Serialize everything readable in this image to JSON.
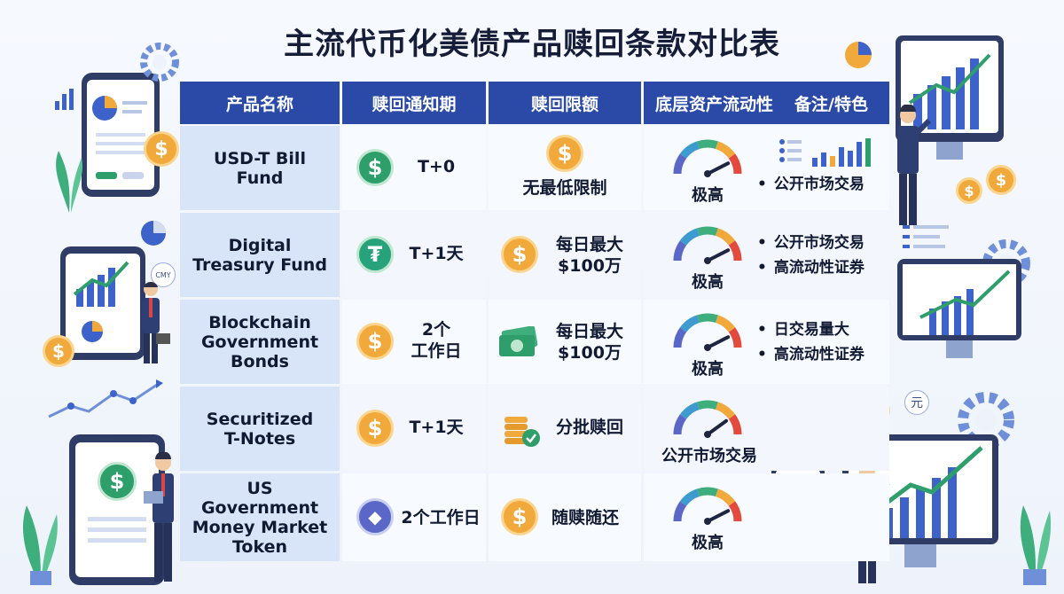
{
  "title": "主流代币化美债产品赎回条款对比表",
  "headers": {
    "name": "产品名称",
    "notice": "赎回通知期",
    "limit": "赎回限额",
    "liquidity": "底层资产流动性",
    "notes": "备注/特色"
  },
  "rows": [
    {
      "name": "USD-T Bill\nFund",
      "notice_icon": "dollar-coin-icon",
      "notice": "T+0",
      "limit_icon": "dollar-coin-icon",
      "limit": "无最低限制",
      "liquidity": "极高",
      "liquidity_level": 0.85,
      "notes": [
        "公开市场交易"
      ]
    },
    {
      "name": "Digital\nTreasury Fund",
      "notice_icon": "tether-coin-icon",
      "notice": "T+1天",
      "limit_icon": "dollar-coin-icon",
      "limit": "每日最大\n$100万",
      "liquidity": "极高",
      "liquidity_level": 0.85,
      "notes": [
        "公开市场交易",
        "高流动性证券"
      ]
    },
    {
      "name": "Blockchain\nGovernment\nBonds",
      "notice_icon": "dollar-coin-icon",
      "notice": "2个\n工作日",
      "limit_icon": "money-bills-icon",
      "limit": "每日最大\n$100万",
      "liquidity": "极高",
      "liquidity_level": 0.85,
      "notes": [
        "日交易量大",
        "高流动性证券"
      ]
    },
    {
      "name": "Securitized\nT-Notes",
      "notice_icon": "dollar-coin-icon",
      "notice": "T+1天",
      "limit_icon": "coin-stack-check-icon",
      "limit": "分批赎回",
      "liquidity": "公开市场交易",
      "liquidity_level": 0.8,
      "notes": []
    },
    {
      "name": "US Government\nMoney Market\nToken",
      "notice_icon": "ethereum-coin-icon",
      "notice": "2个工作日",
      "limit_icon": "dollar-coin-icon",
      "limit": "随赎随还",
      "liquidity": "极高",
      "liquidity_level": 0.85,
      "notes": []
    }
  ],
  "decor": {
    "cmy_badge": "CMY",
    "yen_badge": "¥",
    "yuan_badge": "元"
  },
  "colors": {
    "header_bg": "#2b4aa8",
    "name_col_bg": "#d8e4f7",
    "accent_gold": "#f2a93b",
    "accent_green": "#2e9e6b"
  }
}
